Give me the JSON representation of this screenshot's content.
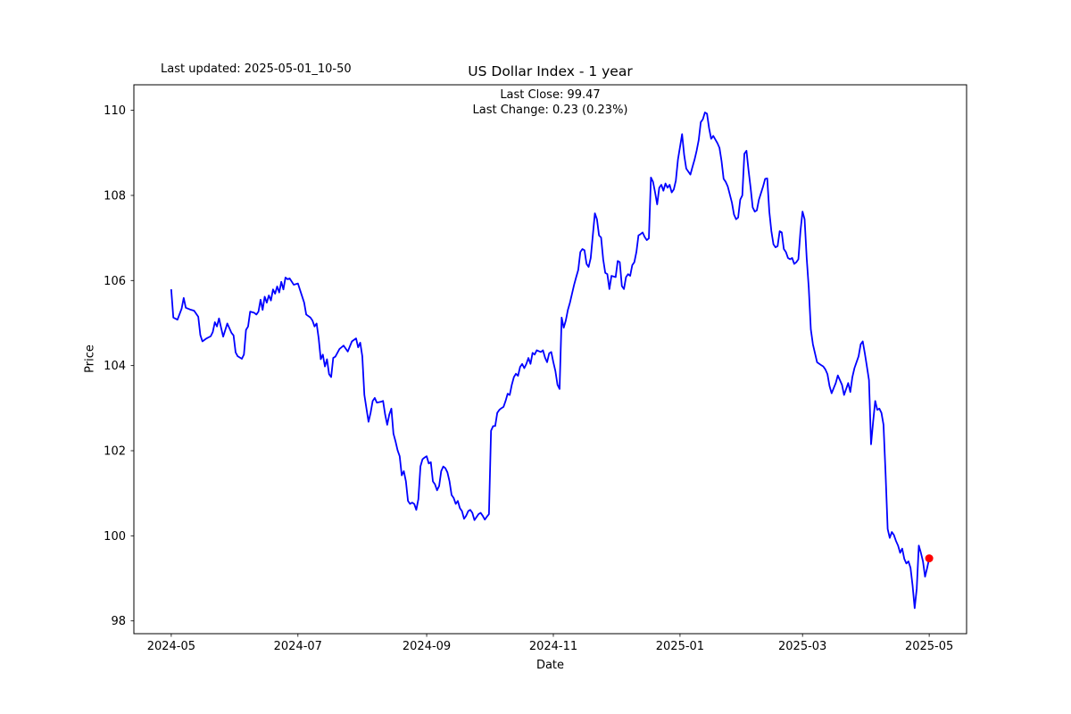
{
  "header": {
    "last_updated": "Last updated: 2025-05-01_10-50",
    "title": "US Dollar Index - 1 year",
    "annotation_line1": "Last Close: 99.47",
    "annotation_line2": "Last Change: 0.23 (0.23%)"
  },
  "chart_data": {
    "type": "line",
    "title": "US Dollar Index - 1 year",
    "xlabel": "Date",
    "ylabel": "Price",
    "grid": false,
    "legend": "none",
    "line_color": "#0000ff",
    "marker_color": "#ff0000",
    "ylim": [
      97.7,
      110.6
    ],
    "xlim_dates": [
      "2024-04-13",
      "2025-05-19"
    ],
    "y_ticks": [
      98,
      100,
      102,
      104,
      106,
      108,
      110
    ],
    "x_ticks": [
      {
        "label": "2024-05",
        "date": "2024-05-01"
      },
      {
        "label": "2024-07",
        "date": "2024-07-01"
      },
      {
        "label": "2024-09",
        "date": "2024-09-01"
      },
      {
        "label": "2024-11",
        "date": "2024-11-01"
      },
      {
        "label": "2025-01",
        "date": "2025-01-01"
      },
      {
        "label": "2025-03",
        "date": "2025-03-01"
      },
      {
        "label": "2025-05",
        "date": "2025-05-01"
      }
    ],
    "last_point": {
      "date": "2025-05-01",
      "value": 99.47
    },
    "points": [
      [
        "2024-05-01",
        105.78
      ],
      [
        "2024-05-02",
        105.13
      ],
      [
        "2024-05-04",
        105.08
      ],
      [
        "2024-05-06",
        105.34
      ],
      [
        "2024-05-07",
        105.59
      ],
      [
        "2024-05-08",
        105.36
      ],
      [
        "2024-05-10",
        105.32
      ],
      [
        "2024-05-12",
        105.29
      ],
      [
        "2024-05-14",
        105.15
      ],
      [
        "2024-05-15",
        104.72
      ],
      [
        "2024-05-16",
        104.57
      ],
      [
        "2024-05-18",
        104.64
      ],
      [
        "2024-05-20",
        104.69
      ],
      [
        "2024-05-21",
        104.79
      ],
      [
        "2024-05-22",
        105.02
      ],
      [
        "2024-05-23",
        104.92
      ],
      [
        "2024-05-24",
        105.11
      ],
      [
        "2024-05-25",
        104.89
      ],
      [
        "2024-05-26",
        104.68
      ],
      [
        "2024-05-28",
        104.99
      ],
      [
        "2024-05-30",
        104.77
      ],
      [
        "2024-05-31",
        104.71
      ],
      [
        "2024-06-01",
        104.31
      ],
      [
        "2024-06-02",
        104.22
      ],
      [
        "2024-06-04",
        104.16
      ],
      [
        "2024-06-05",
        104.26
      ],
      [
        "2024-06-06",
        104.84
      ],
      [
        "2024-06-07",
        104.92
      ],
      [
        "2024-06-08",
        105.27
      ],
      [
        "2024-06-10",
        105.24
      ],
      [
        "2024-06-11",
        105.2
      ],
      [
        "2024-06-12",
        105.27
      ],
      [
        "2024-06-13",
        105.55
      ],
      [
        "2024-06-14",
        105.31
      ],
      [
        "2024-06-15",
        105.62
      ],
      [
        "2024-06-16",
        105.48
      ],
      [
        "2024-06-17",
        105.65
      ],
      [
        "2024-06-18",
        105.53
      ],
      [
        "2024-06-19",
        105.79
      ],
      [
        "2024-06-20",
        105.69
      ],
      [
        "2024-06-21",
        105.86
      ],
      [
        "2024-06-22",
        105.72
      ],
      [
        "2024-06-23",
        105.97
      ],
      [
        "2024-06-24",
        105.79
      ],
      [
        "2024-06-25",
        106.07
      ],
      [
        "2024-06-26",
        106.03
      ],
      [
        "2024-06-27",
        106.05
      ],
      [
        "2024-06-29",
        105.9
      ],
      [
        "2024-07-01",
        105.93
      ],
      [
        "2024-07-04",
        105.48
      ],
      [
        "2024-07-05",
        105.2
      ],
      [
        "2024-07-07",
        105.13
      ],
      [
        "2024-07-08",
        105.06
      ],
      [
        "2024-07-09",
        104.92
      ],
      [
        "2024-07-10",
        104.99
      ],
      [
        "2024-07-11",
        104.64
      ],
      [
        "2024-07-12",
        104.15
      ],
      [
        "2024-07-13",
        104.26
      ],
      [
        "2024-07-14",
        103.98
      ],
      [
        "2024-07-15",
        104.15
      ],
      [
        "2024-07-16",
        103.8
      ],
      [
        "2024-07-17",
        103.73
      ],
      [
        "2024-07-18",
        104.18
      ],
      [
        "2024-07-19",
        104.21
      ],
      [
        "2024-07-21",
        104.39
      ],
      [
        "2024-07-23",
        104.47
      ],
      [
        "2024-07-25",
        104.33
      ],
      [
        "2024-07-27",
        104.57
      ],
      [
        "2024-07-29",
        104.64
      ],
      [
        "2024-07-30",
        104.43
      ],
      [
        "2024-07-31",
        104.54
      ],
      [
        "2024-08-01",
        104.22
      ],
      [
        "2024-08-02",
        103.31
      ],
      [
        "2024-08-03",
        102.99
      ],
      [
        "2024-08-04",
        102.68
      ],
      [
        "2024-08-05",
        102.89
      ],
      [
        "2024-08-06",
        103.17
      ],
      [
        "2024-08-07",
        103.24
      ],
      [
        "2024-08-08",
        103.13
      ],
      [
        "2024-08-10",
        103.15
      ],
      [
        "2024-08-11",
        103.17
      ],
      [
        "2024-08-12",
        102.85
      ],
      [
        "2024-08-13",
        102.61
      ],
      [
        "2024-08-14",
        102.85
      ],
      [
        "2024-08-15",
        102.99
      ],
      [
        "2024-08-16",
        102.4
      ],
      [
        "2024-08-17",
        102.22
      ],
      [
        "2024-08-18",
        102.01
      ],
      [
        "2024-08-19",
        101.87
      ],
      [
        "2024-08-20",
        101.42
      ],
      [
        "2024-08-21",
        101.52
      ],
      [
        "2024-08-22",
        101.28
      ],
      [
        "2024-08-23",
        100.82
      ],
      [
        "2024-08-24",
        100.75
      ],
      [
        "2024-08-25",
        100.78
      ],
      [
        "2024-08-26",
        100.75
      ],
      [
        "2024-08-27",
        100.61
      ],
      [
        "2024-08-28",
        100.86
      ],
      [
        "2024-08-29",
        101.63
      ],
      [
        "2024-08-30",
        101.8
      ],
      [
        "2024-08-31",
        101.84
      ],
      [
        "2024-09-01",
        101.87
      ],
      [
        "2024-09-02",
        101.7
      ],
      [
        "2024-09-03",
        101.73
      ],
      [
        "2024-09-04",
        101.28
      ],
      [
        "2024-09-05",
        101.21
      ],
      [
        "2024-09-06",
        101.07
      ],
      [
        "2024-09-07",
        101.17
      ],
      [
        "2024-09-08",
        101.52
      ],
      [
        "2024-09-09",
        101.63
      ],
      [
        "2024-09-10",
        101.59
      ],
      [
        "2024-09-11",
        101.49
      ],
      [
        "2024-09-12",
        101.28
      ],
      [
        "2024-09-13",
        100.96
      ],
      [
        "2024-09-14",
        100.89
      ],
      [
        "2024-09-15",
        100.75
      ],
      [
        "2024-09-16",
        100.82
      ],
      [
        "2024-09-17",
        100.65
      ],
      [
        "2024-09-18",
        100.58
      ],
      [
        "2024-09-19",
        100.4
      ],
      [
        "2024-09-20",
        100.47
      ],
      [
        "2024-09-21",
        100.58
      ],
      [
        "2024-09-22",
        100.61
      ],
      [
        "2024-09-23",
        100.54
      ],
      [
        "2024-09-24",
        100.37
      ],
      [
        "2024-09-25",
        100.44
      ],
      [
        "2024-09-26",
        100.51
      ],
      [
        "2024-09-27",
        100.54
      ],
      [
        "2024-09-28",
        100.47
      ],
      [
        "2024-09-29",
        100.38
      ],
      [
        "2024-09-30",
        100.45
      ],
      [
        "2024-10-01",
        100.51
      ],
      [
        "2024-10-02",
        102.47
      ],
      [
        "2024-10-03",
        102.58
      ],
      [
        "2024-10-04",
        102.58
      ],
      [
        "2024-10-05",
        102.89
      ],
      [
        "2024-10-06",
        102.96
      ],
      [
        "2024-10-07",
        103.0
      ],
      [
        "2024-10-08",
        103.03
      ],
      [
        "2024-10-09",
        103.17
      ],
      [
        "2024-10-10",
        103.34
      ],
      [
        "2024-10-11",
        103.31
      ],
      [
        "2024-10-12",
        103.55
      ],
      [
        "2024-10-13",
        103.73
      ],
      [
        "2024-10-14",
        103.81
      ],
      [
        "2024-10-15",
        103.76
      ],
      [
        "2024-10-16",
        103.97
      ],
      [
        "2024-10-17",
        104.04
      ],
      [
        "2024-10-18",
        103.94
      ],
      [
        "2024-10-19",
        104.04
      ],
      [
        "2024-10-20",
        104.18
      ],
      [
        "2024-10-21",
        104.04
      ],
      [
        "2024-10-22",
        104.3
      ],
      [
        "2024-10-23",
        104.26
      ],
      [
        "2024-10-24",
        104.36
      ],
      [
        "2024-10-26",
        104.32
      ],
      [
        "2024-10-27",
        104.36
      ],
      [
        "2024-10-28",
        104.19
      ],
      [
        "2024-10-29",
        104.08
      ],
      [
        "2024-10-30",
        104.29
      ],
      [
        "2024-10-31",
        104.32
      ],
      [
        "2024-11-01",
        104.08
      ],
      [
        "2024-11-02",
        103.87
      ],
      [
        "2024-11-03",
        103.55
      ],
      [
        "2024-11-04",
        103.45
      ],
      [
        "2024-11-05",
        105.13
      ],
      [
        "2024-11-06",
        104.89
      ],
      [
        "2024-11-07",
        105.06
      ],
      [
        "2024-11-08",
        105.31
      ],
      [
        "2024-11-09",
        105.48
      ],
      [
        "2024-11-10",
        105.69
      ],
      [
        "2024-11-11",
        105.9
      ],
      [
        "2024-11-12",
        106.08
      ],
      [
        "2024-11-13",
        106.25
      ],
      [
        "2024-11-14",
        106.67
      ],
      [
        "2024-11-15",
        106.74
      ],
      [
        "2024-11-16",
        106.71
      ],
      [
        "2024-11-17",
        106.39
      ],
      [
        "2024-11-18",
        106.32
      ],
      [
        "2024-11-19",
        106.53
      ],
      [
        "2024-11-21",
        107.58
      ],
      [
        "2024-11-22",
        107.44
      ],
      [
        "2024-11-23",
        107.06
      ],
      [
        "2024-11-24",
        107.01
      ],
      [
        "2024-11-25",
        106.5
      ],
      [
        "2024-11-26",
        106.18
      ],
      [
        "2024-11-27",
        106.15
      ],
      [
        "2024-11-28",
        105.8
      ],
      [
        "2024-11-29",
        106.11
      ],
      [
        "2024-12-01",
        106.08
      ],
      [
        "2024-12-02",
        106.46
      ],
      [
        "2024-12-03",
        106.43
      ],
      [
        "2024-12-04",
        105.87
      ],
      [
        "2024-12-05",
        105.8
      ],
      [
        "2024-12-06",
        106.08
      ],
      [
        "2024-12-07",
        106.15
      ],
      [
        "2024-12-08",
        106.11
      ],
      [
        "2024-12-09",
        106.36
      ],
      [
        "2024-12-10",
        106.43
      ],
      [
        "2024-12-11",
        106.67
      ],
      [
        "2024-12-12",
        107.06
      ],
      [
        "2024-12-13",
        107.09
      ],
      [
        "2024-12-14",
        107.13
      ],
      [
        "2024-12-15",
        107.02
      ],
      [
        "2024-12-16",
        106.95
      ],
      [
        "2024-12-17",
        106.99
      ],
      [
        "2024-12-18",
        108.42
      ],
      [
        "2024-12-19",
        108.32
      ],
      [
        "2024-12-20",
        108.07
      ],
      [
        "2024-12-21",
        107.79
      ],
      [
        "2024-12-22",
        108.18
      ],
      [
        "2024-12-23",
        108.25
      ],
      [
        "2024-12-24",
        108.11
      ],
      [
        "2024-12-25",
        108.28
      ],
      [
        "2024-12-26",
        108.18
      ],
      [
        "2024-12-27",
        108.25
      ],
      [
        "2024-12-28",
        108.07
      ],
      [
        "2024-12-29",
        108.14
      ],
      [
        "2024-12-30",
        108.35
      ],
      [
        "2024-12-31",
        108.84
      ],
      [
        "2025-01-02",
        109.44
      ],
      [
        "2025-01-03",
        108.95
      ],
      [
        "2025-01-04",
        108.63
      ],
      [
        "2025-01-06",
        108.49
      ],
      [
        "2025-01-07",
        108.67
      ],
      [
        "2025-01-08",
        108.84
      ],
      [
        "2025-01-09",
        109.05
      ],
      [
        "2025-01-10",
        109.3
      ],
      [
        "2025-01-11",
        109.72
      ],
      [
        "2025-01-12",
        109.79
      ],
      [
        "2025-01-13",
        109.95
      ],
      [
        "2025-01-14",
        109.92
      ],
      [
        "2025-01-15",
        109.58
      ],
      [
        "2025-01-16",
        109.33
      ],
      [
        "2025-01-17",
        109.4
      ],
      [
        "2025-01-19",
        109.23
      ],
      [
        "2025-01-20",
        109.12
      ],
      [
        "2025-01-21",
        108.81
      ],
      [
        "2025-01-22",
        108.39
      ],
      [
        "2025-01-23",
        108.32
      ],
      [
        "2025-01-24",
        108.21
      ],
      [
        "2025-01-26",
        107.83
      ],
      [
        "2025-01-27",
        107.55
      ],
      [
        "2025-01-28",
        107.44
      ],
      [
        "2025-01-29",
        107.48
      ],
      [
        "2025-01-30",
        107.9
      ],
      [
        "2025-01-31",
        108.0
      ],
      [
        "2025-02-01",
        108.98
      ],
      [
        "2025-02-02",
        109.05
      ],
      [
        "2025-02-03",
        108.59
      ],
      [
        "2025-02-04",
        108.18
      ],
      [
        "2025-02-05",
        107.72
      ],
      [
        "2025-02-06",
        107.62
      ],
      [
        "2025-02-07",
        107.65
      ],
      [
        "2025-02-08",
        107.9
      ],
      [
        "2025-02-10",
        108.21
      ],
      [
        "2025-02-11",
        108.39
      ],
      [
        "2025-02-12",
        108.4
      ],
      [
        "2025-02-13",
        107.62
      ],
      [
        "2025-02-14",
        107.16
      ],
      [
        "2025-02-15",
        106.85
      ],
      [
        "2025-02-16",
        106.78
      ],
      [
        "2025-02-17",
        106.81
      ],
      [
        "2025-02-18",
        107.16
      ],
      [
        "2025-02-19",
        107.13
      ],
      [
        "2025-02-20",
        106.74
      ],
      [
        "2025-02-21",
        106.67
      ],
      [
        "2025-02-22",
        106.53
      ],
      [
        "2025-02-23",
        106.5
      ],
      [
        "2025-02-24",
        106.53
      ],
      [
        "2025-02-25",
        106.39
      ],
      [
        "2025-02-26",
        106.43
      ],
      [
        "2025-02-27",
        106.5
      ],
      [
        "2025-02-28",
        107.16
      ],
      [
        "2025-03-01",
        107.62
      ],
      [
        "2025-03-02",
        107.44
      ],
      [
        "2025-03-03",
        106.53
      ],
      [
        "2025-03-04",
        105.83
      ],
      [
        "2025-03-05",
        104.85
      ],
      [
        "2025-03-06",
        104.5
      ],
      [
        "2025-03-07",
        104.29
      ],
      [
        "2025-03-08",
        104.08
      ],
      [
        "2025-03-10",
        104.01
      ],
      [
        "2025-03-11",
        103.98
      ],
      [
        "2025-03-12",
        103.91
      ],
      [
        "2025-03-13",
        103.8
      ],
      [
        "2025-03-14",
        103.52
      ],
      [
        "2025-03-15",
        103.35
      ],
      [
        "2025-03-16",
        103.47
      ],
      [
        "2025-03-17",
        103.59
      ],
      [
        "2025-03-18",
        103.77
      ],
      [
        "2025-03-19",
        103.66
      ],
      [
        "2025-03-20",
        103.55
      ],
      [
        "2025-03-21",
        103.31
      ],
      [
        "2025-03-22",
        103.45
      ],
      [
        "2025-03-23",
        103.59
      ],
      [
        "2025-03-24",
        103.38
      ],
      [
        "2025-03-25",
        103.73
      ],
      [
        "2025-03-26",
        103.94
      ],
      [
        "2025-03-27",
        104.08
      ],
      [
        "2025-03-28",
        104.22
      ],
      [
        "2025-03-29",
        104.5
      ],
      [
        "2025-03-30",
        104.57
      ],
      [
        "2025-03-31",
        104.29
      ],
      [
        "2025-04-01",
        103.98
      ],
      [
        "2025-04-02",
        103.66
      ],
      [
        "2025-04-03",
        102.15
      ],
      [
        "2025-04-04",
        102.68
      ],
      [
        "2025-04-05",
        103.17
      ],
      [
        "2025-04-06",
        102.96
      ],
      [
        "2025-04-07",
        102.99
      ],
      [
        "2025-04-08",
        102.89
      ],
      [
        "2025-04-09",
        102.61
      ],
      [
        "2025-04-10",
        101.45
      ],
      [
        "2025-04-11",
        100.16
      ],
      [
        "2025-04-12",
        99.95
      ],
      [
        "2025-04-13",
        100.09
      ],
      [
        "2025-04-14",
        100.02
      ],
      [
        "2025-04-15",
        99.88
      ],
      [
        "2025-04-16",
        99.77
      ],
      [
        "2025-04-17",
        99.6
      ],
      [
        "2025-04-18",
        99.7
      ],
      [
        "2025-04-19",
        99.46
      ],
      [
        "2025-04-20",
        99.35
      ],
      [
        "2025-04-21",
        99.4
      ],
      [
        "2025-04-22",
        99.25
      ],
      [
        "2025-04-23",
        98.83
      ],
      [
        "2025-04-24",
        98.3
      ],
      [
        "2025-04-25",
        98.76
      ],
      [
        "2025-04-26",
        99.77
      ],
      [
        "2025-04-27",
        99.6
      ],
      [
        "2025-04-28",
        99.4
      ],
      [
        "2025-04-29",
        99.04
      ],
      [
        "2025-04-30",
        99.24
      ],
      [
        "2025-05-01",
        99.47
      ]
    ]
  }
}
